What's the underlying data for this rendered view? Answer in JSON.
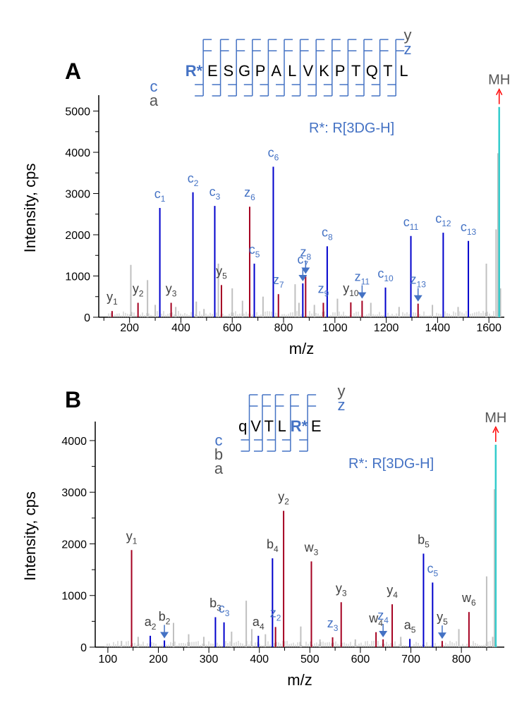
{
  "colors": {
    "c_ion": "#0000cc",
    "z_ion": "#a50021",
    "y_ion": "#a50021",
    "b_ion": "#0000cc",
    "w_ion": "#a50021",
    "noise": "#c0c0c0",
    "precursor": "#33cccc",
    "label_blue": "#4472c4",
    "label_gray": "#404040",
    "arrow_blue": "#4472c4",
    "arrow_red": "#ff0000"
  },
  "chart_data": [
    {
      "type": "bar",
      "panel_label": "A",
      "xlabel": "m/z",
      "ylabel": "Intensity, cps",
      "xlim": [
        80,
        1660
      ],
      "ylim": [
        0,
        5300
      ],
      "xticks": [
        200,
        400,
        600,
        800,
        1000,
        1200,
        1400,
        1600
      ],
      "yticks": [
        0,
        1000,
        2000,
        3000,
        4000,
        5000
      ],
      "sequence": {
        "residues": [
          "R*",
          "E",
          "S",
          "G",
          "P",
          "A",
          "L",
          "V",
          "K",
          "P",
          "T",
          "Q",
          "T",
          "L"
        ],
        "modified_index": 0,
        "top_series": [
          "y",
          "z"
        ],
        "bottom_series": [
          "c",
          "a"
        ],
        "mod_note": "R*: R[3DG-H]"
      },
      "precursor": {
        "label": "MH",
        "mz": 1640,
        "intensity": 5100
      },
      "series": [
        {
          "name": "c",
          "points": [
            {
              "mz": 318,
              "intensity": 2650,
              "label": "c",
              "sub": "1"
            },
            {
              "mz": 447,
              "intensity": 3030,
              "label": "c",
              "sub": "2"
            },
            {
              "mz": 532,
              "intensity": 2700,
              "label": "c",
              "sub": "3"
            },
            {
              "mz": 686,
              "intensity": 1300,
              "label": "c",
              "sub": "5"
            },
            {
              "mz": 760,
              "intensity": 3650,
              "label": "c",
              "sub": "6"
            },
            {
              "mz": 875,
              "intensity": 820,
              "label": "c",
              "sub": "7",
              "arrow": true
            },
            {
              "mz": 970,
              "intensity": 1720,
              "label": "c",
              "sub": "8"
            },
            {
              "mz": 1197,
              "intensity": 720,
              "label": "c",
              "sub": "10"
            },
            {
              "mz": 1296,
              "intensity": 1970,
              "label": "c",
              "sub": "11"
            },
            {
              "mz": 1422,
              "intensity": 2050,
              "label": "c",
              "sub": "12"
            },
            {
              "mz": 1520,
              "intensity": 1850,
              "label": "c",
              "sub": "13"
            }
          ]
        },
        {
          "name": "z",
          "points": [
            {
              "mz": 668,
              "intensity": 2680,
              "label": "z",
              "sub": "6"
            },
            {
              "mz": 780,
              "intensity": 560,
              "label": "z",
              "sub": "7"
            },
            {
              "mz": 886,
              "intensity": 1000,
              "label": "z",
              "sub": "8",
              "arrow": true
            },
            {
              "mz": 955,
              "intensity": 350,
              "label": "z",
              "sub": "9"
            },
            {
              "mz": 1106,
              "intensity": 400,
              "label": "z",
              "sub": "11",
              "arrow": true
            },
            {
              "mz": 1324,
              "intensity": 330,
              "label": "z",
              "sub": "13",
              "arrow": true
            }
          ]
        },
        {
          "name": "y",
          "points": [
            {
              "mz": 132,
              "intensity": 150,
              "label": "y",
              "sub": "1"
            },
            {
              "mz": 233,
              "intensity": 350,
              "label": "y",
              "sub": "2"
            },
            {
              "mz": 362,
              "intensity": 350,
              "label": "y",
              "sub": "3"
            },
            {
              "mz": 558,
              "intensity": 780,
              "label": "y",
              "sub": "5"
            },
            {
              "mz": 1062,
              "intensity": 360,
              "label": "y",
              "sub": "10"
            }
          ]
        },
        {
          "name": "noise",
          "points": [
            {
              "mz": 205,
              "intensity": 1270
            },
            {
              "mz": 270,
              "intensity": 900
            },
            {
              "mz": 300,
              "intensity": 300
            },
            {
              "mz": 380,
              "intensity": 250
            },
            {
              "mz": 460,
              "intensity": 380
            },
            {
              "mz": 490,
              "intensity": 200
            },
            {
              "mz": 546,
              "intensity": 1300
            },
            {
              "mz": 600,
              "intensity": 700
            },
            {
              "mz": 640,
              "intensity": 400
            },
            {
              "mz": 720,
              "intensity": 500
            },
            {
              "mz": 845,
              "intensity": 800
            },
            {
              "mz": 860,
              "intensity": 350
            },
            {
              "mz": 920,
              "intensity": 300
            },
            {
              "mz": 1010,
              "intensity": 450
            },
            {
              "mz": 1140,
              "intensity": 350
            },
            {
              "mz": 1250,
              "intensity": 250
            },
            {
              "mz": 1380,
              "intensity": 300
            },
            {
              "mz": 1480,
              "intensity": 250
            },
            {
              "mz": 1590,
              "intensity": 1300
            },
            {
              "mz": 1628,
              "intensity": 2130
            },
            {
              "mz": 1645,
              "intensity": 700
            }
          ]
        }
      ]
    },
    {
      "type": "bar",
      "panel_label": "B",
      "xlabel": "m/z",
      "ylabel": "Intensity, cps",
      "xlim": [
        75,
        885
      ],
      "ylim": [
        0,
        4300
      ],
      "xticks": [
        100,
        200,
        300,
        400,
        500,
        600,
        700,
        800
      ],
      "yticks": [
        0,
        1000,
        2000,
        3000,
        4000
      ],
      "sequence": {
        "residues": [
          "q",
          "V",
          "T",
          "L",
          "R*",
          "E"
        ],
        "modified_index": 4,
        "top_series": [
          "y",
          "z"
        ],
        "bottom_series": [
          "c",
          "b",
          "a"
        ],
        "mod_note": "R*: R[3DG-H]"
      },
      "precursor": {
        "label": "MH",
        "mz": 868,
        "intensity": 3920
      },
      "series": [
        {
          "name": "y",
          "points": [
            {
              "mz": 147,
              "intensity": 1880,
              "label": "y",
              "sub": "1"
            },
            {
              "mz": 448,
              "intensity": 2640,
              "label": "y",
              "sub": "2"
            },
            {
              "mz": 562,
              "intensity": 870,
              "label": "y",
              "sub": "3"
            },
            {
              "mz": 663,
              "intensity": 830,
              "label": "y",
              "sub": "4"
            },
            {
              "mz": 762,
              "intensity": 120,
              "label": "y",
              "sub": "5",
              "arrow": true
            }
          ]
        },
        {
          "name": "w",
          "points": [
            {
              "mz": 503,
              "intensity": 1660,
              "label": "w",
              "sub": "3"
            },
            {
              "mz": 631,
              "intensity": 290,
              "label": "w",
              "sub": "4"
            },
            {
              "mz": 815,
              "intensity": 680,
              "label": "w",
              "sub": "6"
            }
          ]
        },
        {
          "name": "b",
          "points": [
            {
              "mz": 212,
              "intensity": 130,
              "label": "b",
              "sub": "2",
              "arrow": true
            },
            {
              "mz": 313,
              "intensity": 580,
              "label": "b",
              "sub": "3"
            },
            {
              "mz": 426,
              "intensity": 1720,
              "label": "b",
              "sub": "4"
            },
            {
              "mz": 725,
              "intensity": 1810,
              "label": "b",
              "sub": "5"
            }
          ]
        },
        {
          "name": "c",
          "points": [
            {
              "mz": 330,
              "intensity": 480,
              "label": "c",
              "sub": "3"
            },
            {
              "mz": 743,
              "intensity": 1250,
              "label": "c",
              "sub": "5"
            }
          ]
        },
        {
          "name": "z",
          "points": [
            {
              "mz": 432,
              "intensity": 390,
              "label": "z",
              "sub": "2"
            },
            {
              "mz": 545,
              "intensity": 190,
              "label": "z",
              "sub": "3"
            },
            {
              "mz": 645,
              "intensity": 150,
              "label": "z",
              "sub": "4",
              "arrow": true
            }
          ]
        },
        {
          "name": "a",
          "points": [
            {
              "mz": 184,
              "intensity": 220,
              "label": "a",
              "sub": "2"
            },
            {
              "mz": 398,
              "intensity": 220,
              "label": "a",
              "sub": "4"
            },
            {
              "mz": 698,
              "intensity": 160,
              "label": "a",
              "sub": "5"
            }
          ]
        },
        {
          "name": "noise",
          "points": [
            {
              "mz": 127,
              "intensity": 120
            },
            {
              "mz": 160,
              "intensity": 200
            },
            {
              "mz": 230,
              "intensity": 470
            },
            {
              "mz": 260,
              "intensity": 250
            },
            {
              "mz": 290,
              "intensity": 200
            },
            {
              "mz": 345,
              "intensity": 300
            },
            {
              "mz": 374,
              "intensity": 900
            },
            {
              "mz": 385,
              "intensity": 350
            },
            {
              "mz": 412,
              "intensity": 250
            },
            {
              "mz": 482,
              "intensity": 400
            },
            {
              "mz": 520,
              "intensity": 150
            },
            {
              "mz": 590,
              "intensity": 150
            },
            {
              "mz": 680,
              "intensity": 200
            },
            {
              "mz": 795,
              "intensity": 350
            },
            {
              "mz": 850,
              "intensity": 1370
            },
            {
              "mz": 862,
              "intensity": 200
            }
          ]
        }
      ]
    }
  ]
}
